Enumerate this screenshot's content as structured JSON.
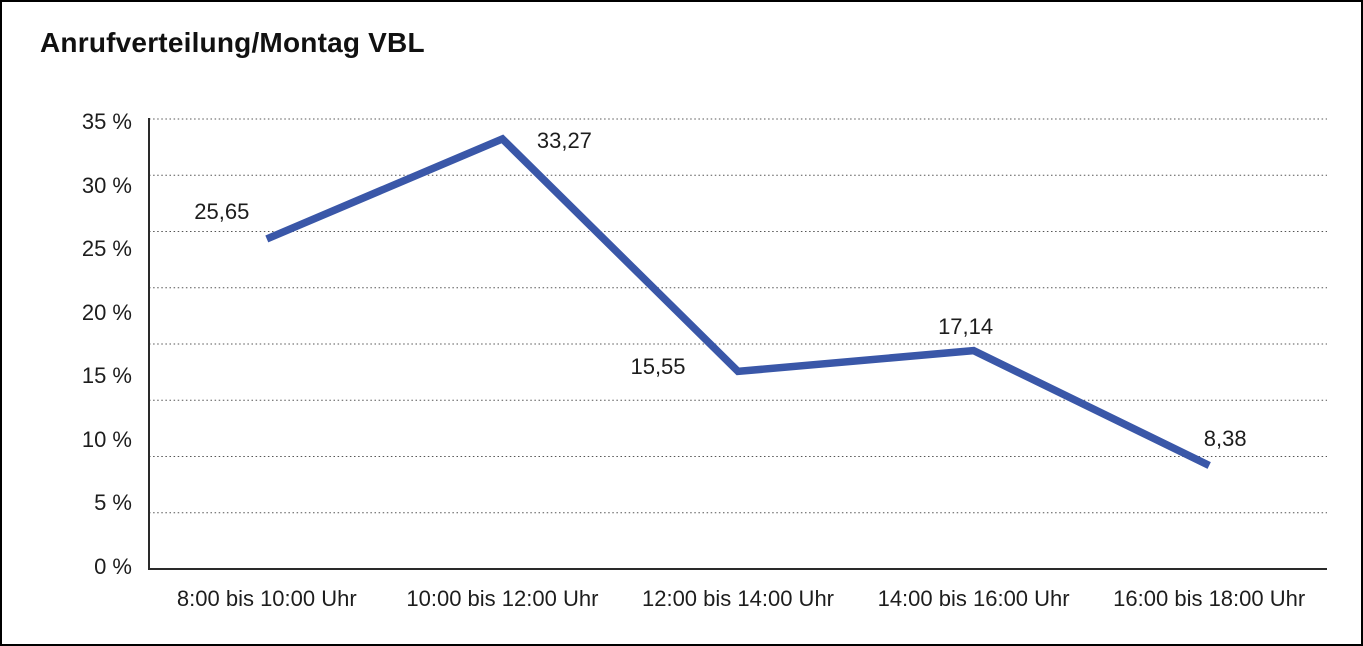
{
  "page": {
    "title": "Anrufverteilung/Montag VBL"
  },
  "chart_data": {
    "type": "line",
    "title": "Anrufverteilung/Montag VBL",
    "categories": [
      "8:00 bis 10:00 Uhr",
      "10:00 bis 12:00 Uhr",
      "12:00 bis 14:00 Uhr",
      "14:00 bis 16:00 Uhr",
      "16:00 bis 18:00 Uhr"
    ],
    "values": [
      25.65,
      33.27,
      15.55,
      17.14,
      8.38
    ],
    "point_labels": [
      "25,65",
      "33,27",
      "15,55",
      "17,14",
      "8,38"
    ],
    "series": [
      {
        "name": "Anrufverteilung Montag",
        "values": [
          25.65,
          33.27,
          15.55,
          17.14,
          8.38
        ]
      }
    ],
    "xlabel": "",
    "ylabel": "",
    "y_ticks": [
      "35 %",
      "30 %",
      "25 %",
      "20 %",
      "15 %",
      "10 %",
      "5 %",
      "0 %"
    ],
    "ylim": [
      0,
      35
    ],
    "y_unit": "%",
    "decimal_style": "comma",
    "grid": "horizontal-dotted",
    "legend_position": "none",
    "colors": {
      "series_line": "#3A57A8",
      "gridline": "#555555",
      "axis": "#2a2a2a",
      "text": "#1d1d1d",
      "title_text": "#111111",
      "background": "#ffffff",
      "frame_border": "#000000"
    }
  }
}
